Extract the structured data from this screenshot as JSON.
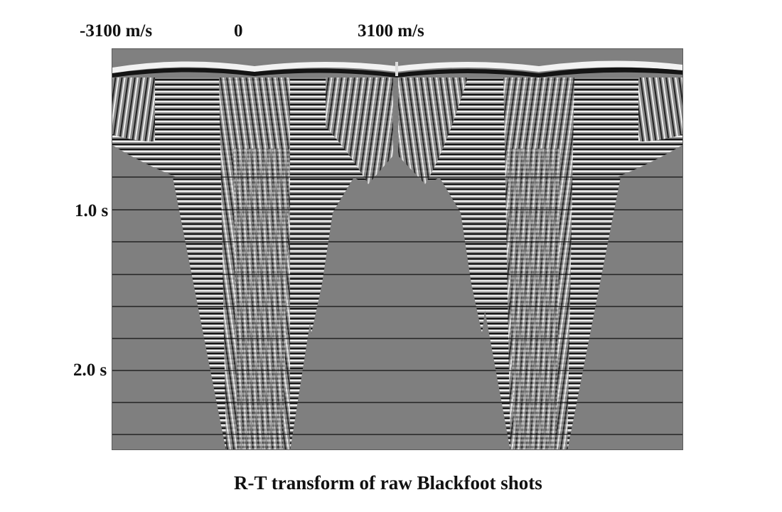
{
  "header": {
    "velocity_left": "-3100 m/s",
    "velocity_center": "0",
    "velocity_right": "3100 m/s"
  },
  "time_axis": {
    "label_1": "1.0 s",
    "label_2": "2.0 s"
  },
  "caption": "R-T transform of raw Blackfoot shots",
  "colors": {
    "background_gray": "#7f7f7f",
    "gridline": "#111111"
  },
  "panels": [
    {
      "panel_index": 1
    },
    {
      "panel_index": 2
    }
  ]
}
